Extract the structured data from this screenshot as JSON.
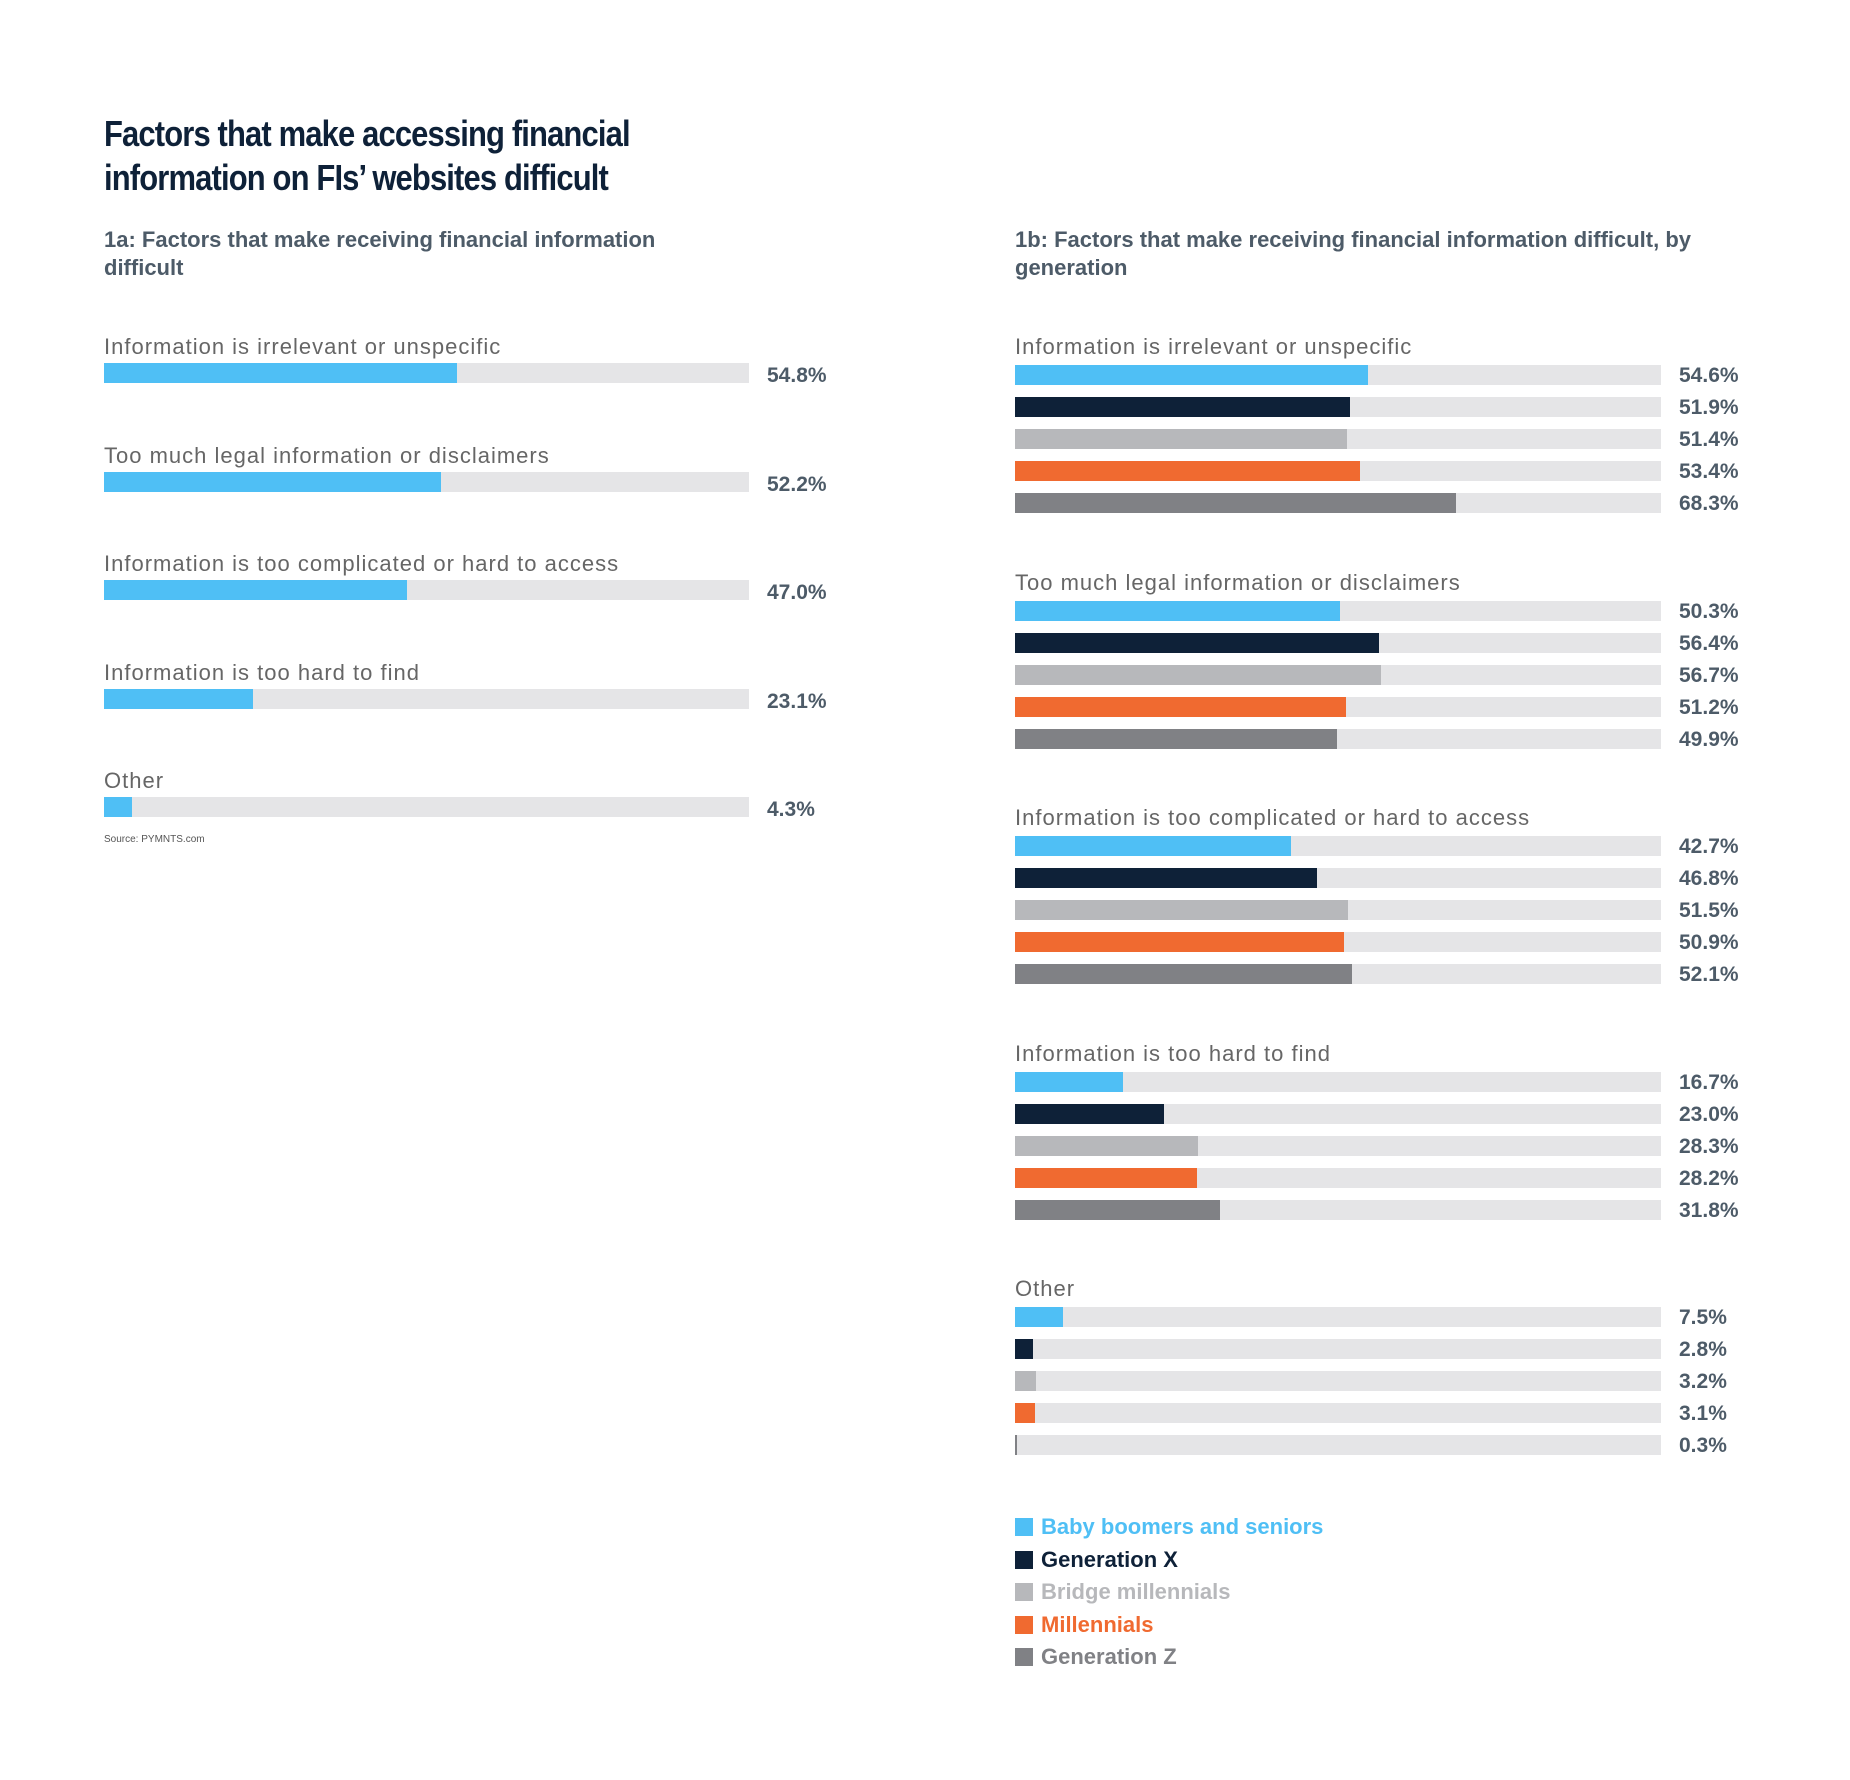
{
  "title": "Factors that make accessing financial information on FIs’ websites difficult",
  "source": "Source: PYMNTS.com",
  "colors": {
    "track": "#e5e5e7",
    "series": [
      "#4fbff5",
      "#0e2138",
      "#b7b8bb",
      "#f06a30",
      "#808185"
    ]
  },
  "chart_data": [
    {
      "type": "bar",
      "title": "1a: Factors that make receiving financial information difficult",
      "orientation": "horizontal",
      "xlim": [
        0,
        100
      ],
      "categories": [
        "Information is irrelevant or unspecific",
        "Too much legal information or disclaimers",
        "Information is too complicated or hard to access",
        "Information is too hard to find",
        "Other"
      ],
      "values": [
        54.8,
        52.2,
        47.0,
        23.1,
        4.3
      ],
      "labels": [
        "54.8%",
        "52.2%",
        "47.0%",
        "23.1%",
        "4.3%"
      ]
    },
    {
      "type": "bar",
      "title": "1b: Factors that make receiving financial information difficult, by generation",
      "orientation": "horizontal",
      "xlim": [
        0,
        100
      ],
      "categories": [
        "Information is irrelevant or unspecific",
        "Too much legal information or disclaimers",
        "Information is too complicated or hard to access",
        "Information is too hard to find",
        "Other"
      ],
      "series": [
        {
          "name": "Baby boomers and seniors",
          "values": [
            54.6,
            50.3,
            42.7,
            16.7,
            7.5
          ],
          "labels": [
            "54.6%",
            "50.3%",
            "42.7%",
            "16.7%",
            "7.5%"
          ]
        },
        {
          "name": "Generation X",
          "values": [
            51.9,
            56.4,
            46.8,
            23.0,
            2.8
          ],
          "labels": [
            "51.9%",
            "56.4%",
            "46.8%",
            "23.0%",
            "2.8%"
          ]
        },
        {
          "name": "Bridge millennials",
          "values": [
            51.4,
            56.7,
            51.5,
            28.3,
            3.2
          ],
          "labels": [
            "51.4%",
            "56.7%",
            "51.5%",
            "28.3%",
            "3.2%"
          ]
        },
        {
          "name": "Millennials",
          "values": [
            53.4,
            51.2,
            50.9,
            28.2,
            3.1
          ],
          "labels": [
            "53.4%",
            "51.2%",
            "50.9%",
            "28.2%",
            "3.1%"
          ]
        },
        {
          "name": "Generation Z",
          "values": [
            68.3,
            49.9,
            52.1,
            31.8,
            0.3
          ],
          "labels": [
            "68.3%",
            "49.9%",
            "52.1%",
            "31.8%",
            "0.3%"
          ]
        }
      ],
      "legend": "bottom-left"
    }
  ]
}
